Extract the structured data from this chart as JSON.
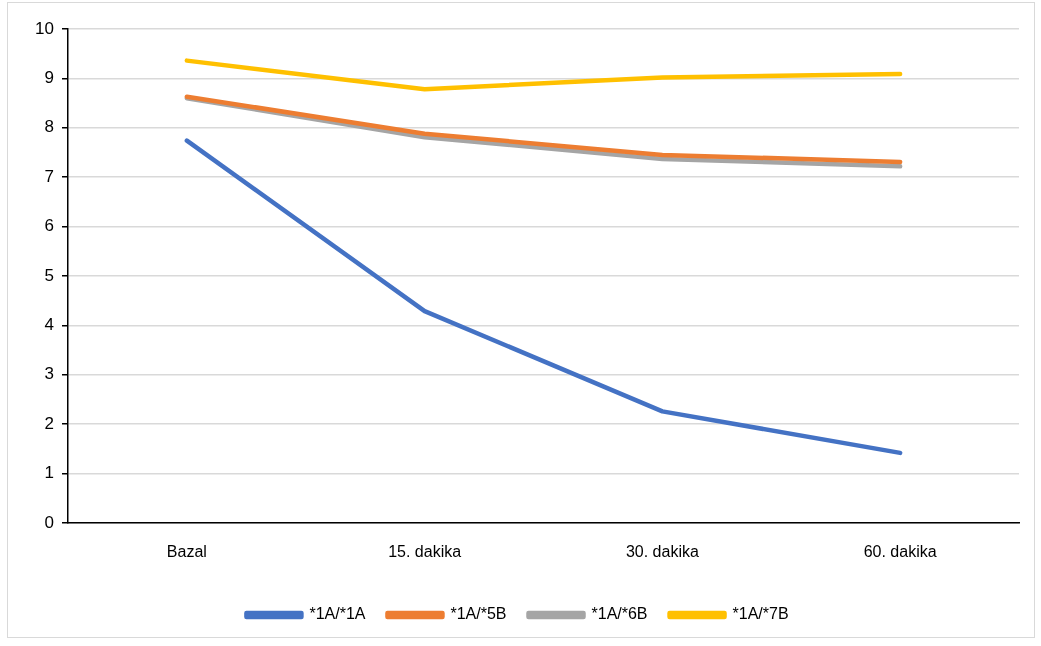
{
  "chart_data": {
    "type": "line",
    "categories": [
      "Bazal",
      "15. dakika",
      "30. dakika",
      "60. dakika"
    ],
    "series": [
      {
        "name": "*1A/*1A",
        "color": "#4472c4",
        "values": [
          7.74,
          4.29,
          2.26,
          1.42
        ]
      },
      {
        "name": "*1A/*5B",
        "color": "#ed7d31",
        "values": [
          8.63,
          7.88,
          7.45,
          7.31
        ]
      },
      {
        "name": "*1A/*6B",
        "color": "#a5a5a5",
        "values": [
          8.6,
          7.81,
          7.37,
          7.22
        ]
      },
      {
        "name": "*1A/*7B",
        "color": "#ffc000",
        "values": [
          9.36,
          8.78,
          9.02,
          9.09
        ]
      }
    ],
    "ylim": [
      0,
      10
    ],
    "yticks": [
      0,
      1,
      2,
      3,
      4,
      5,
      6,
      7,
      8,
      9,
      10
    ],
    "grid": "y",
    "legend": "bottom",
    "marker": "none"
  }
}
